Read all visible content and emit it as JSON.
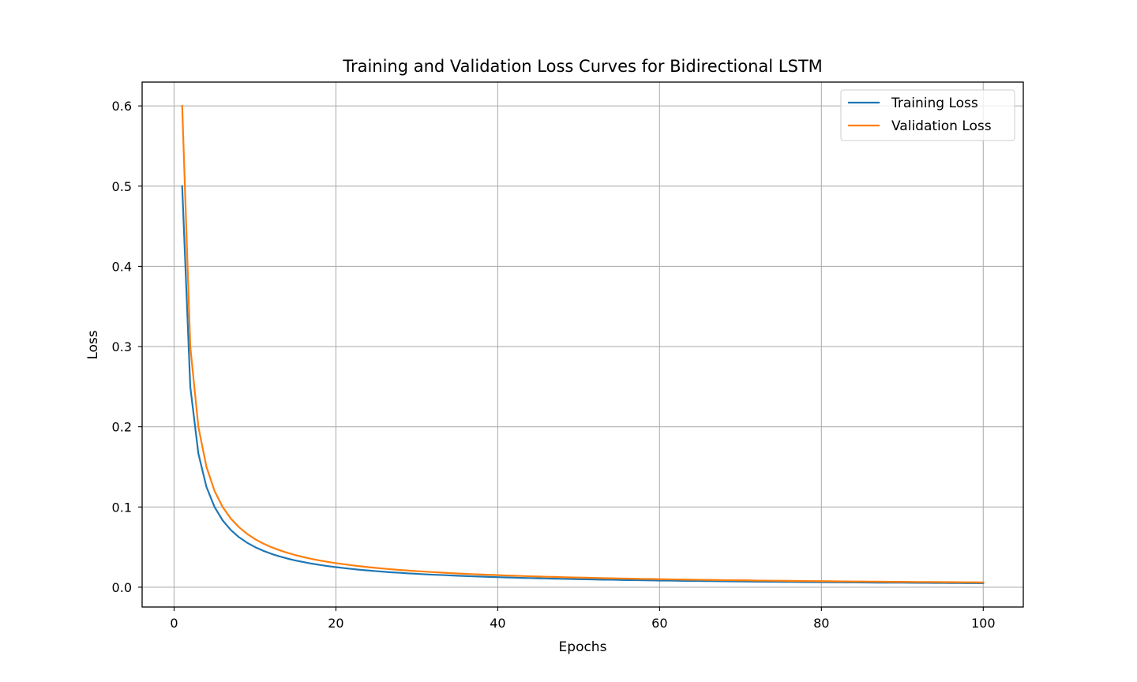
{
  "chart_data": {
    "type": "line",
    "title": "Training and Validation Loss Curves for Bidirectional LSTM",
    "xlabel": "Epochs",
    "ylabel": "Loss",
    "xlim": [
      -3.95,
      104.95
    ],
    "ylim": [
      -0.0247,
      0.6297
    ],
    "x_ticks": [
      0,
      20,
      40,
      60,
      80,
      100
    ],
    "x_tick_labels": [
      "0",
      "20",
      "40",
      "60",
      "80",
      "100"
    ],
    "y_ticks": [
      0.0,
      0.1,
      0.2,
      0.3,
      0.4,
      0.5,
      0.6
    ],
    "y_tick_labels": [
      "0.0",
      "0.1",
      "0.2",
      "0.3",
      "0.4",
      "0.5",
      "0.6"
    ],
    "grid": true,
    "legend_position": "top-right",
    "series": [
      {
        "name": "Training Loss",
        "color": "#1f77b4",
        "x": [
          1,
          2,
          3,
          4,
          5,
          6,
          7,
          8,
          9,
          10,
          11,
          12,
          13,
          14,
          15,
          16,
          17,
          18,
          19,
          20,
          21,
          22,
          23,
          24,
          25,
          26,
          27,
          28,
          29,
          30,
          31,
          32,
          33,
          34,
          35,
          36,
          37,
          38,
          39,
          40,
          41,
          42,
          43,
          44,
          45,
          46,
          47,
          48,
          49,
          50,
          51,
          52,
          53,
          54,
          55,
          56,
          57,
          58,
          59,
          60,
          61,
          62,
          63,
          64,
          65,
          66,
          67,
          68,
          69,
          70,
          71,
          72,
          73,
          74,
          75,
          76,
          77,
          78,
          79,
          80,
          81,
          82,
          83,
          84,
          85,
          86,
          87,
          88,
          89,
          90,
          91,
          92,
          93,
          94,
          95,
          96,
          97,
          98,
          99,
          100
        ],
        "values": [
          0.5,
          0.25,
          0.1667,
          0.125,
          0.1,
          0.0833,
          0.0714,
          0.0625,
          0.0556,
          0.05,
          0.0455,
          0.0417,
          0.0385,
          0.0357,
          0.0333,
          0.0313,
          0.0294,
          0.0278,
          0.0263,
          0.025,
          0.0238,
          0.0227,
          0.0217,
          0.0208,
          0.02,
          0.0192,
          0.0185,
          0.0179,
          0.0172,
          0.0167,
          0.0161,
          0.0156,
          0.0152,
          0.0147,
          0.0143,
          0.0139,
          0.0135,
          0.0132,
          0.0128,
          0.0125,
          0.0122,
          0.0119,
          0.0116,
          0.0114,
          0.0111,
          0.0109,
          0.0106,
          0.0104,
          0.0102,
          0.01,
          0.0098,
          0.0096,
          0.0094,
          0.0093,
          0.0091,
          0.0089,
          0.0088,
          0.0086,
          0.0085,
          0.0083,
          0.0082,
          0.0081,
          0.0079,
          0.0078,
          0.0077,
          0.0076,
          0.0075,
          0.0074,
          0.0072,
          0.0071,
          0.007,
          0.0069,
          0.0068,
          0.0068,
          0.0067,
          0.0066,
          0.0065,
          0.0064,
          0.0063,
          0.0063,
          0.0062,
          0.0061,
          0.006,
          0.006,
          0.0059,
          0.0058,
          0.0057,
          0.0057,
          0.0056,
          0.0056,
          0.0055,
          0.0054,
          0.0054,
          0.0053,
          0.0053,
          0.0052,
          0.0052,
          0.0051,
          0.0051,
          0.005
        ]
      },
      {
        "name": "Validation Loss",
        "color": "#ff7f0e",
        "x": [
          1,
          2,
          3,
          4,
          5,
          6,
          7,
          8,
          9,
          10,
          11,
          12,
          13,
          14,
          15,
          16,
          17,
          18,
          19,
          20,
          21,
          22,
          23,
          24,
          25,
          26,
          27,
          28,
          29,
          30,
          31,
          32,
          33,
          34,
          35,
          36,
          37,
          38,
          39,
          40,
          41,
          42,
          43,
          44,
          45,
          46,
          47,
          48,
          49,
          50,
          51,
          52,
          53,
          54,
          55,
          56,
          57,
          58,
          59,
          60,
          61,
          62,
          63,
          64,
          65,
          66,
          67,
          68,
          69,
          70,
          71,
          72,
          73,
          74,
          75,
          76,
          77,
          78,
          79,
          80,
          81,
          82,
          83,
          84,
          85,
          86,
          87,
          88,
          89,
          90,
          91,
          92,
          93,
          94,
          95,
          96,
          97,
          98,
          99,
          100
        ],
        "values": [
          0.6,
          0.3,
          0.2,
          0.15,
          0.12,
          0.1,
          0.0857,
          0.075,
          0.0667,
          0.06,
          0.0545,
          0.05,
          0.0462,
          0.0429,
          0.04,
          0.0375,
          0.0353,
          0.0333,
          0.0316,
          0.03,
          0.0286,
          0.0273,
          0.0261,
          0.025,
          0.024,
          0.0231,
          0.0222,
          0.0214,
          0.0207,
          0.02,
          0.0194,
          0.0188,
          0.0182,
          0.0176,
          0.0171,
          0.0167,
          0.0162,
          0.0158,
          0.0154,
          0.015,
          0.0146,
          0.0143,
          0.014,
          0.0136,
          0.0133,
          0.013,
          0.0128,
          0.0125,
          0.0122,
          0.012,
          0.0118,
          0.0115,
          0.0113,
          0.0111,
          0.0109,
          0.0107,
          0.0105,
          0.0103,
          0.0102,
          0.01,
          0.0098,
          0.0097,
          0.0095,
          0.0094,
          0.0092,
          0.0091,
          0.009,
          0.0088,
          0.0087,
          0.0086,
          0.0085,
          0.0083,
          0.0082,
          0.0081,
          0.008,
          0.0079,
          0.0078,
          0.0077,
          0.0076,
          0.0075,
          0.0074,
          0.0073,
          0.0072,
          0.0071,
          0.0071,
          0.007,
          0.0069,
          0.0068,
          0.0067,
          0.0067,
          0.0066,
          0.0065,
          0.0065,
          0.0064,
          0.0063,
          0.0063,
          0.0062,
          0.0061,
          0.0061,
          0.006
        ]
      }
    ]
  }
}
